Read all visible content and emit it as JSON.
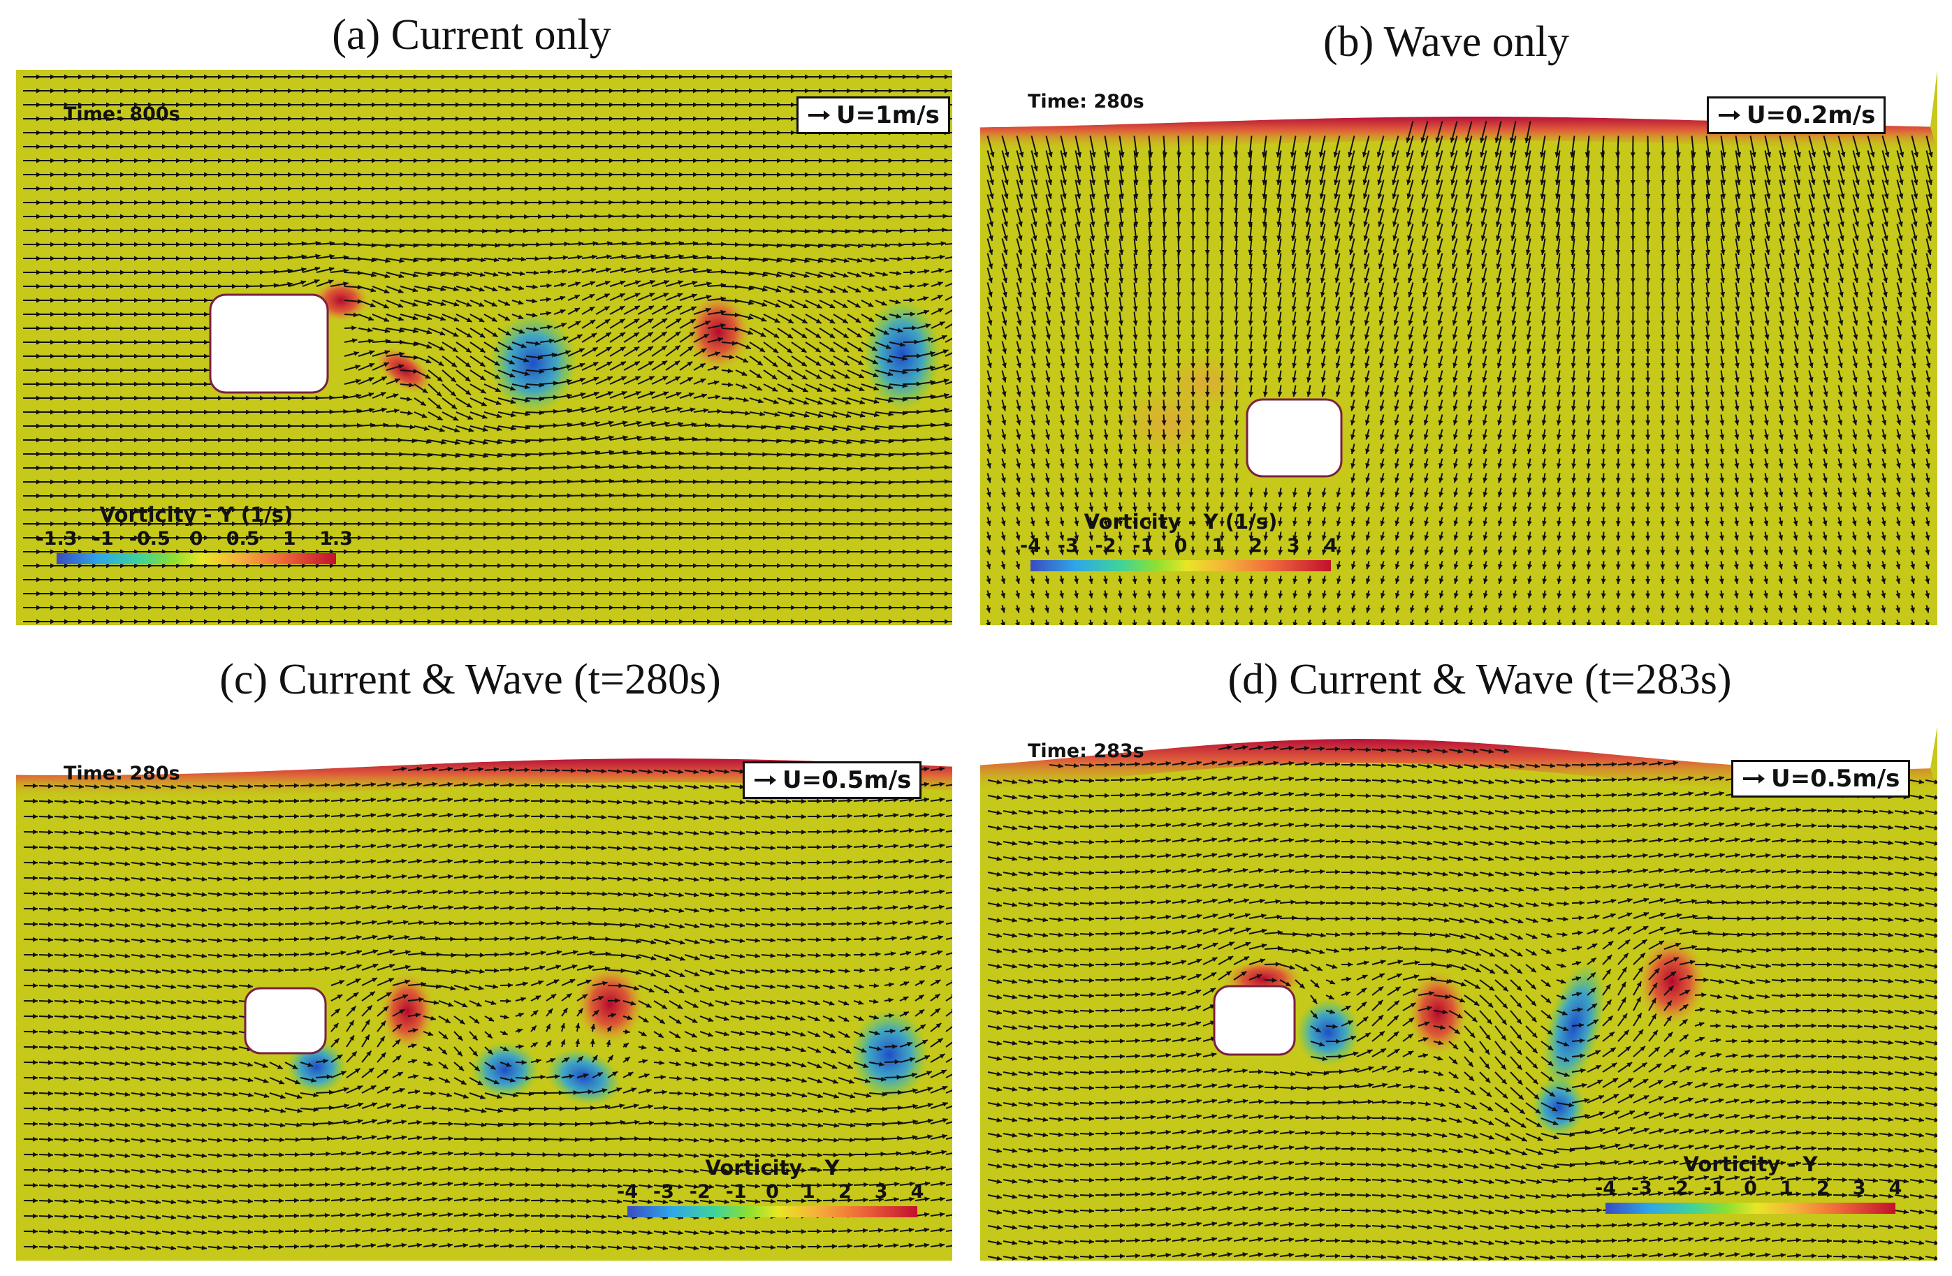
{
  "panels": [
    {
      "id": "a",
      "title": "(a) Current only",
      "time": "Time: 800s",
      "reference": "U=1m/s",
      "colorbar": {
        "title": "Vorticity  - Y (1/s)",
        "ticks": [
          "-1.3",
          "-1",
          "-0.5",
          "0",
          "0.5",
          "1",
          "1.3"
        ]
      }
    },
    {
      "id": "b",
      "title": "(b) Wave only",
      "time": "Time: 280s",
      "reference": "U=0.2m/s",
      "colorbar": {
        "title": "Vorticity  - Y (1/s)",
        "ticks": [
          "-4",
          "-3",
          "-2",
          "-1",
          "0",
          "1",
          "2",
          "3",
          "4"
        ]
      }
    },
    {
      "id": "c",
      "title": "(c) Current & Wave (t=280s)",
      "time": "Time: 280s",
      "reference": "U=0.5m/s",
      "colorbar": {
        "title": "Vorticity - Y",
        "ticks": [
          "-4",
          "-3",
          "-2",
          "-1",
          "0",
          "1",
          "2",
          "3",
          "4"
        ]
      }
    },
    {
      "id": "d",
      "title": "(d) Current & Wave (t=283s)",
      "time": "Time: 283s",
      "reference": "U=0.5m/s",
      "colorbar": {
        "title": "Vorticity - Y",
        "ticks": [
          "-4",
          "-3",
          "-2",
          "-1",
          "0",
          "1",
          "2",
          "3",
          "4"
        ]
      }
    }
  ],
  "colors": {
    "background": "#c6c81a",
    "positive": "#c2102e",
    "negative": "#2a5bd0",
    "vector": "#111111"
  }
}
